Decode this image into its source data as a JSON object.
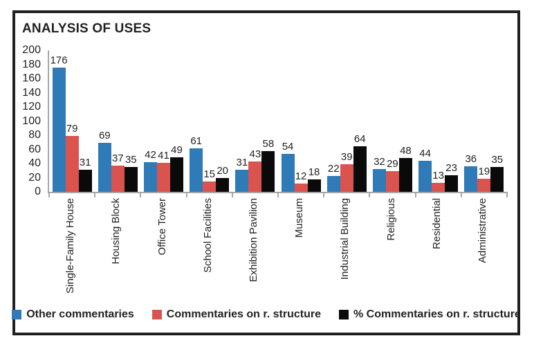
{
  "chart": {
    "title": "ANALYSIS OF USES"
  },
  "colors": {
    "series_blue": "#2e7bb8",
    "series_red": "#db534f",
    "series_black": "#0a0a0a",
    "axis": "#a6a6a6",
    "frame_border": "#231f20",
    "text": "#231f20",
    "background": "#ffffff"
  },
  "chart_data": {
    "type": "bar",
    "title": "ANALYSIS OF USES",
    "categories": [
      "Single-Family House",
      "Housing Block",
      "Office Tower",
      "School Facilities",
      "Exhibition Pavilion",
      "Museum",
      "Industrial Building",
      "Religious",
      "Residential",
      "Administrative"
    ],
    "series": [
      {
        "name": "Other commentaries",
        "color": "#2e7bb8",
        "values": [
          176,
          69,
          42,
          61,
          31,
          54,
          22,
          32,
          44,
          36
        ]
      },
      {
        "name": "Commentaries on r. structure",
        "color": "#db534f",
        "values": [
          79,
          37,
          41,
          15,
          43,
          12,
          39,
          29,
          13,
          19
        ]
      },
      {
        "name": "% Commentaries on r. structure",
        "color": "#0a0a0a",
        "values": [
          31,
          35,
          49,
          20,
          58,
          18,
          64,
          48,
          23,
          35
        ]
      }
    ],
    "xlabel": "",
    "ylabel": "",
    "ylim": [
      0,
      200
    ],
    "ytick_step": 20,
    "grid": false,
    "data_labels": true,
    "legend_position": "bottom",
    "category_label_rotation": -90
  }
}
